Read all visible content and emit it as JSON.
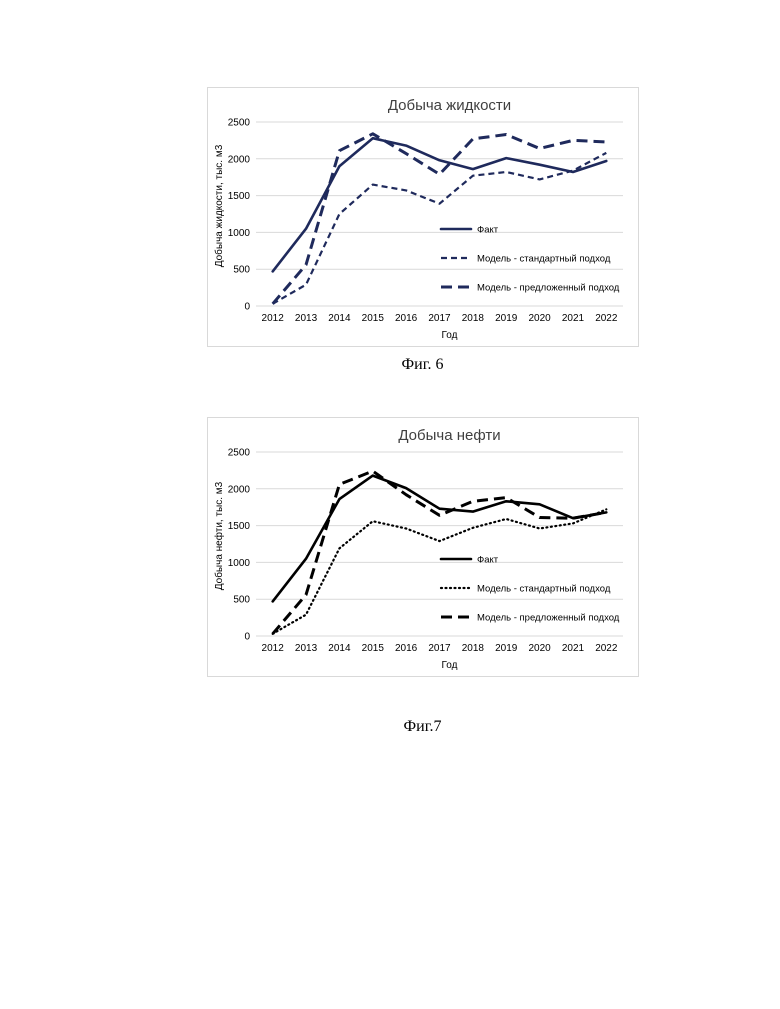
{
  "figures": [
    {
      "caption": "Фиг. 6",
      "chart_data": {
        "type": "line",
        "title": "Добыча жидкости",
        "xlabel": "Год",
        "ylabel": "Добыча жидкости, тыс. м3",
        "ylim": [
          0,
          2500
        ],
        "yticks": [
          0,
          500,
          1000,
          1500,
          2000,
          2500
        ],
        "grid": true,
        "legend_position": "right",
        "categories": [
          "2012",
          "2013",
          "2014",
          "2015",
          "2016",
          "2017",
          "2018",
          "2019",
          "2020",
          "2021",
          "2022"
        ],
        "series": [
          {
            "name": "Факт",
            "style": "solid",
            "color": "#1f2a5c",
            "values": [
              470,
              1050,
              1900,
              2280,
              2180,
              1980,
              1860,
              2010,
              1920,
              1820,
              1970
            ]
          },
          {
            "name": "Модель - стандартный подход",
            "style": "short-dash",
            "color": "#1f2a5c",
            "values": [
              30,
              290,
              1250,
              1650,
              1570,
              1390,
              1770,
              1820,
              1720,
              1840,
              2080
            ]
          },
          {
            "name": "Модель - предложенный подход",
            "style": "long-dash",
            "color": "#1f2a5c",
            "values": [
              30,
              560,
              2110,
              2340,
              2070,
              1790,
              2270,
              2330,
              2140,
              2250,
              2230
            ]
          }
        ]
      }
    },
    {
      "caption": "Фиг.7",
      "chart_data": {
        "type": "line",
        "title": "Добыча нефти",
        "xlabel": "Год",
        "ylabel": "Добыча нефти, тыс. м3",
        "ylim": [
          0,
          2500
        ],
        "yticks": [
          0,
          500,
          1000,
          1500,
          2000,
          2500
        ],
        "grid": true,
        "legend_position": "right",
        "categories": [
          "2012",
          "2013",
          "2014",
          "2015",
          "2016",
          "2017",
          "2018",
          "2019",
          "2020",
          "2021",
          "2022"
        ],
        "series": [
          {
            "name": "Факт",
            "style": "solid",
            "color": "#000000",
            "values": [
              470,
              1050,
              1860,
              2180,
              2010,
              1730,
              1690,
              1830,
              1790,
              1600,
              1680
            ]
          },
          {
            "name": "Модель - стандартный подход",
            "style": "dotted",
            "color": "#000000",
            "values": [
              30,
              290,
              1190,
              1560,
              1460,
              1290,
              1470,
              1590,
              1460,
              1530,
              1720
            ]
          },
          {
            "name": "Модель - предложенный подход",
            "style": "long-dash",
            "color": "#000000",
            "values": [
              30,
              560,
              2060,
              2240,
              1920,
              1640,
              1830,
              1880,
              1610,
              1600,
              1680
            ]
          }
        ]
      }
    }
  ]
}
